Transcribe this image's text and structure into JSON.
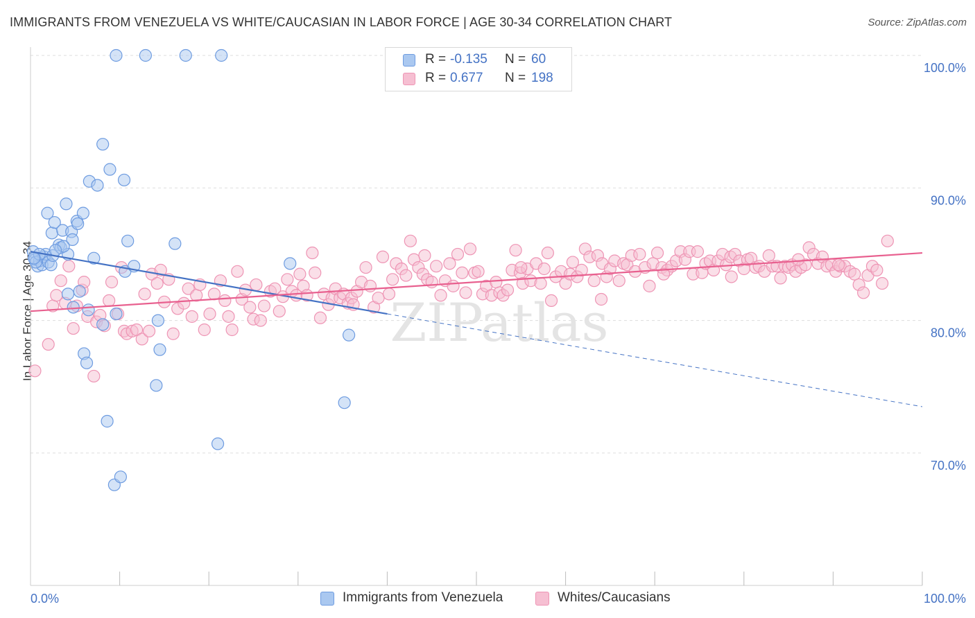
{
  "title": "IMMIGRANTS FROM VENEZUELA VS WHITE/CAUCASIAN IN LABOR FORCE | AGE 30-34 CORRELATION CHART",
  "source": "Source: ZipAtlas.com",
  "watermark": "ZIPatlas",
  "colors": {
    "blue": "#4472c4",
    "blue_fill": "#aac8f0",
    "blue_stroke": "#6d9be0",
    "pink": "#e8608f",
    "pink_fill": "#f6bfd2",
    "pink_stroke": "#ee94b4",
    "tick_label": "#4472c4",
    "grid": "#dddddd"
  },
  "legend_top": {
    "rows": [
      {
        "r_label": "R =",
        "r_value": "-0.135",
        "n_label": "N =",
        "n_value": "60"
      },
      {
        "r_label": "R =",
        "r_value": "0.677",
        "n_label": "N =",
        "n_value": "198"
      }
    ]
  },
  "legend_bottom": [
    {
      "label": "Immigrants from Venezuela"
    },
    {
      "label": "Whites/Caucasians"
    }
  ],
  "chart_data": {
    "type": "scatter",
    "title": "IMMIGRANTS FROM VENEZUELA VS WHITE/CAUCASIAN IN LABOR FORCE | AGE 30-34 CORRELATION CHART",
    "xlabel": "",
    "ylabel": "In Labor Force | Age 30-34",
    "xlim": [
      0,
      100
    ],
    "ylim": [
      60,
      102
    ],
    "x_tick_labels": [
      "0.0%",
      "100.0%"
    ],
    "y_ticks": [
      70,
      80,
      90,
      100
    ],
    "y_tick_labels": [
      "70.0%",
      "80.0%",
      "90.0%",
      "100.0%"
    ],
    "grid": true,
    "legend_position": "top-center",
    "series": [
      {
        "name": "Immigrants from Venezuela",
        "color": "blue",
        "r": -0.135,
        "n": 60,
        "trend": {
          "x0": 0,
          "y0": 85.2,
          "x1": 40,
          "y1": 80.5,
          "x_dash_end": 100,
          "y_dash_end": 73.5
        },
        "points": [
          [
            0.3,
            85.2
          ],
          [
            0.5,
            84.6
          ],
          [
            0.8,
            84.1
          ],
          [
            1.0,
            84.5
          ],
          [
            1.3,
            84.2
          ],
          [
            1.5,
            84.8
          ],
          [
            1.7,
            85.0
          ],
          [
            2.0,
            84.4
          ],
          [
            2.3,
            84.2
          ],
          [
            0.6,
            84.4
          ],
          [
            1.9,
            88.1
          ],
          [
            2.5,
            84.9
          ],
          [
            2.4,
            86.6
          ],
          [
            2.7,
            87.4
          ],
          [
            3.2,
            85.7
          ],
          [
            3.4,
            85.5
          ],
          [
            3.6,
            86.8
          ],
          [
            4.0,
            88.8
          ],
          [
            4.2,
            85.0
          ],
          [
            4.6,
            86.7
          ],
          [
            4.7,
            86.1
          ],
          [
            5.2,
            87.5
          ],
          [
            5.3,
            87.3
          ],
          [
            5.9,
            88.1
          ],
          [
            4.2,
            82.0
          ],
          [
            4.8,
            81.0
          ],
          [
            5.5,
            82.2
          ],
          [
            6.0,
            77.5
          ],
          [
            6.3,
            76.8
          ],
          [
            6.5,
            80.8
          ],
          [
            6.6,
            90.5
          ],
          [
            7.5,
            90.2
          ],
          [
            7.1,
            84.7
          ],
          [
            8.1,
            79.7
          ],
          [
            8.1,
            93.3
          ],
          [
            8.6,
            72.4
          ],
          [
            8.9,
            91.4
          ],
          [
            9.4,
            67.6
          ],
          [
            9.6,
            80.5
          ],
          [
            10.1,
            68.2
          ],
          [
            10.5,
            90.6
          ],
          [
            10.6,
            83.7
          ],
          [
            10.9,
            86.0
          ],
          [
            11.6,
            84.1
          ],
          [
            14.3,
            80.0
          ],
          [
            14.5,
            77.8
          ],
          [
            14.1,
            75.1
          ],
          [
            16.2,
            85.8
          ],
          [
            21.0,
            70.7
          ],
          [
            29.1,
            84.3
          ],
          [
            35.2,
            73.8
          ],
          [
            35.7,
            78.9
          ],
          [
            9.6,
            100.0
          ],
          [
            12.9,
            100.0
          ],
          [
            17.4,
            100.0
          ],
          [
            21.4,
            100.0
          ],
          [
            3.7,
            85.6
          ],
          [
            1.0,
            85.0
          ],
          [
            2.8,
            85.3
          ],
          [
            0.4,
            84.7
          ]
        ]
      },
      {
        "name": "Whites/Caucasians",
        "color": "pink",
        "r": 0.677,
        "n": 198,
        "trend": {
          "x0": 0,
          "y0": 80.7,
          "x1": 100,
          "y1": 85.1
        },
        "points": [
          [
            0.5,
            76.2
          ],
          [
            2.0,
            78.2
          ],
          [
            2.5,
            81.1
          ],
          [
            2.9,
            81.9
          ],
          [
            3.4,
            83.0
          ],
          [
            3.9,
            81.3
          ],
          [
            4.3,
            84.1
          ],
          [
            4.8,
            79.4
          ],
          [
            5.2,
            81.1
          ],
          [
            5.8,
            82.3
          ],
          [
            6.0,
            82.9
          ],
          [
            6.4,
            80.3
          ],
          [
            7.1,
            75.8
          ],
          [
            7.4,
            79.9
          ],
          [
            7.8,
            80.4
          ],
          [
            8.3,
            79.6
          ],
          [
            8.8,
            81.5
          ],
          [
            9.1,
            82.9
          ],
          [
            9.8,
            80.5
          ],
          [
            10.2,
            84.0
          ],
          [
            10.5,
            79.2
          ],
          [
            10.8,
            79.0
          ],
          [
            11.4,
            79.2
          ],
          [
            11.9,
            79.3
          ],
          [
            12.5,
            78.6
          ],
          [
            12.8,
            82.0
          ],
          [
            13.3,
            79.2
          ],
          [
            13.6,
            83.5
          ],
          [
            14.2,
            82.8
          ],
          [
            14.6,
            83.8
          ],
          [
            15.0,
            81.4
          ],
          [
            15.5,
            83.1
          ],
          [
            16.0,
            79.0
          ],
          [
            16.5,
            80.9
          ],
          [
            17.2,
            81.3
          ],
          [
            17.7,
            82.4
          ],
          [
            18.1,
            80.3
          ],
          [
            18.6,
            81.9
          ],
          [
            19.0,
            82.7
          ],
          [
            19.5,
            79.3
          ],
          [
            20.1,
            80.5
          ],
          [
            20.6,
            82.0
          ],
          [
            21.3,
            83.0
          ],
          [
            21.8,
            81.5
          ],
          [
            22.2,
            80.3
          ],
          [
            22.6,
            79.3
          ],
          [
            23.2,
            83.7
          ],
          [
            23.7,
            81.6
          ],
          [
            24.1,
            82.3
          ],
          [
            24.6,
            81.0
          ],
          [
            25.0,
            80.1
          ],
          [
            25.3,
            82.7
          ],
          [
            25.8,
            80.0
          ],
          [
            26.2,
            81.1
          ],
          [
            26.9,
            82.2
          ],
          [
            27.4,
            82.4
          ],
          [
            27.9,
            80.7
          ],
          [
            28.3,
            81.8
          ],
          [
            28.8,
            83.1
          ],
          [
            29.3,
            82.2
          ],
          [
            29.8,
            81.9
          ],
          [
            30.2,
            83.5
          ],
          [
            30.6,
            82.6
          ],
          [
            31.0,
            81.9
          ],
          [
            31.6,
            85.1
          ],
          [
            31.9,
            83.6
          ],
          [
            32.5,
            80.2
          ],
          [
            32.9,
            82.0
          ],
          [
            33.4,
            81.2
          ],
          [
            33.8,
            81.7
          ],
          [
            34.2,
            82.4
          ],
          [
            34.7,
            81.7
          ],
          [
            35.1,
            82.0
          ],
          [
            35.6,
            81.3
          ],
          [
            36.0,
            81.7
          ],
          [
            36.6,
            82.2
          ],
          [
            37.1,
            82.9
          ],
          [
            37.6,
            84.0
          ],
          [
            38.1,
            82.6
          ],
          [
            38.5,
            81.0
          ],
          [
            39.0,
            81.7
          ],
          [
            39.5,
            84.8
          ],
          [
            40.2,
            82.0
          ],
          [
            40.6,
            83.1
          ],
          [
            41.0,
            84.3
          ],
          [
            41.6,
            83.9
          ],
          [
            42.1,
            83.4
          ],
          [
            42.6,
            86.0
          ],
          [
            43.0,
            84.6
          ],
          [
            43.5,
            84.0
          ],
          [
            44.0,
            83.5
          ],
          [
            44.5,
            83.1
          ],
          [
            45.0,
            82.9
          ],
          [
            45.5,
            84.1
          ],
          [
            46.0,
            81.9
          ],
          [
            46.5,
            83.0
          ],
          [
            47.0,
            84.3
          ],
          [
            47.4,
            82.6
          ],
          [
            47.9,
            85.0
          ],
          [
            48.4,
            83.6
          ],
          [
            48.8,
            82.1
          ],
          [
            49.3,
            85.4
          ],
          [
            49.8,
            83.6
          ],
          [
            50.2,
            83.7
          ],
          [
            50.7,
            82.0
          ],
          [
            51.1,
            82.6
          ],
          [
            51.7,
            81.9
          ],
          [
            52.2,
            82.9
          ],
          [
            52.6,
            82.1
          ],
          [
            53.0,
            81.9
          ],
          [
            53.5,
            82.3
          ],
          [
            54.0,
            83.8
          ],
          [
            54.4,
            85.3
          ],
          [
            54.9,
            83.6
          ],
          [
            55.2,
            82.8
          ],
          [
            55.7,
            83.9
          ],
          [
            56.1,
            83.0
          ],
          [
            56.7,
            84.3
          ],
          [
            57.2,
            82.8
          ],
          [
            57.6,
            83.9
          ],
          [
            58.0,
            85.1
          ],
          [
            58.4,
            81.5
          ],
          [
            58.9,
            83.3
          ],
          [
            59.5,
            83.7
          ],
          [
            60.0,
            82.8
          ],
          [
            60.5,
            83.5
          ],
          [
            60.8,
            84.4
          ],
          [
            61.3,
            83.3
          ],
          [
            61.8,
            83.8
          ],
          [
            62.2,
            85.4
          ],
          [
            62.7,
            84.8
          ],
          [
            63.2,
            83.0
          ],
          [
            63.6,
            84.9
          ],
          [
            64.1,
            84.3
          ],
          [
            64.6,
            83.3
          ],
          [
            65.0,
            83.9
          ],
          [
            65.5,
            84.5
          ],
          [
            66.0,
            83.0
          ],
          [
            66.5,
            84.3
          ],
          [
            66.9,
            84.2
          ],
          [
            67.4,
            84.9
          ],
          [
            67.8,
            83.7
          ],
          [
            68.3,
            85.0
          ],
          [
            68.9,
            84.0
          ],
          [
            69.4,
            82.6
          ],
          [
            69.8,
            84.3
          ],
          [
            70.3,
            85.1
          ],
          [
            70.8,
            84.0
          ],
          [
            71.4,
            83.8
          ],
          [
            71.9,
            84.1
          ],
          [
            72.4,
            84.5
          ],
          [
            72.9,
            85.2
          ],
          [
            73.4,
            84.6
          ],
          [
            73.9,
            85.2
          ],
          [
            74.3,
            83.5
          ],
          [
            74.8,
            85.2
          ],
          [
            75.3,
            83.6
          ],
          [
            75.7,
            84.3
          ],
          [
            76.2,
            84.5
          ],
          [
            76.6,
            83.8
          ],
          [
            77.1,
            84.5
          ],
          [
            77.6,
            85.0
          ],
          [
            78.0,
            84.2
          ],
          [
            78.5,
            84.8
          ],
          [
            79.0,
            85.0
          ],
          [
            79.5,
            84.5
          ],
          [
            80.0,
            83.9
          ],
          [
            80.4,
            84.6
          ],
          [
            80.8,
            84.7
          ],
          [
            81.3,
            84.0
          ],
          [
            81.7,
            84.1
          ],
          [
            82.3,
            83.7
          ],
          [
            82.8,
            84.9
          ],
          [
            83.2,
            84.1
          ],
          [
            83.7,
            84.1
          ],
          [
            84.1,
            83.2
          ],
          [
            84.6,
            84.1
          ],
          [
            85.0,
            84.0
          ],
          [
            85.4,
            84.2
          ],
          [
            85.8,
            83.7
          ],
          [
            86.4,
            84.0
          ],
          [
            86.9,
            84.2
          ],
          [
            87.3,
            85.5
          ],
          [
            87.8,
            85.0
          ],
          [
            88.3,
            84.3
          ],
          [
            88.8,
            84.8
          ],
          [
            89.3,
            84.1
          ],
          [
            89.8,
            84.2
          ],
          [
            90.3,
            83.7
          ],
          [
            90.8,
            84.1
          ],
          [
            91.3,
            84.1
          ],
          [
            91.9,
            83.7
          ],
          [
            92.4,
            83.5
          ],
          [
            92.9,
            82.7
          ],
          [
            93.4,
            82.1
          ],
          [
            93.9,
            83.4
          ],
          [
            94.4,
            84.1
          ],
          [
            94.9,
            83.8
          ],
          [
            95.5,
            82.8
          ],
          [
            96.1,
            86.0
          ],
          [
            36.2,
            81.2
          ],
          [
            44.2,
            84.9
          ],
          [
            55.0,
            84.0
          ],
          [
            64.0,
            81.6
          ],
          [
            71.0,
            83.5
          ],
          [
            78.6,
            83.3
          ],
          [
            86.1,
            84.6
          ],
          [
            90.6,
            84.2
          ]
        ]
      }
    ]
  }
}
